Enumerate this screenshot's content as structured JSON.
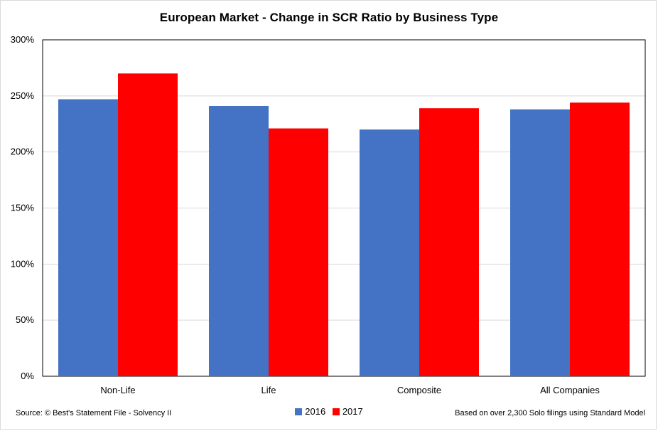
{
  "chart_data": {
    "type": "bar",
    "title": "European Market - Change in SCR Ratio by Business Type",
    "categories": [
      "Non-Life",
      "Life",
      "Composite",
      "All Companies"
    ],
    "series": [
      {
        "name": "2016",
        "values": [
          247,
          241,
          220,
          238
        ],
        "color": "#4472C4"
      },
      {
        "name": "2017",
        "values": [
          270,
          221,
          239,
          244
        ],
        "color": "#FF0000"
      }
    ],
    "ylim": [
      0,
      300
    ],
    "yticks": [
      "0%",
      "50%",
      "100%",
      "150%",
      "200%",
      "250%",
      "300%"
    ],
    "y_tick_values": [
      0,
      50,
      100,
      150,
      200,
      250,
      300
    ],
    "grid": true,
    "legend_position": "bottom-center"
  },
  "footer": {
    "source": "Source: © Best's Statement File - Solvency II",
    "note": "Based on over 2,300 Solo filings using Standard Model"
  }
}
